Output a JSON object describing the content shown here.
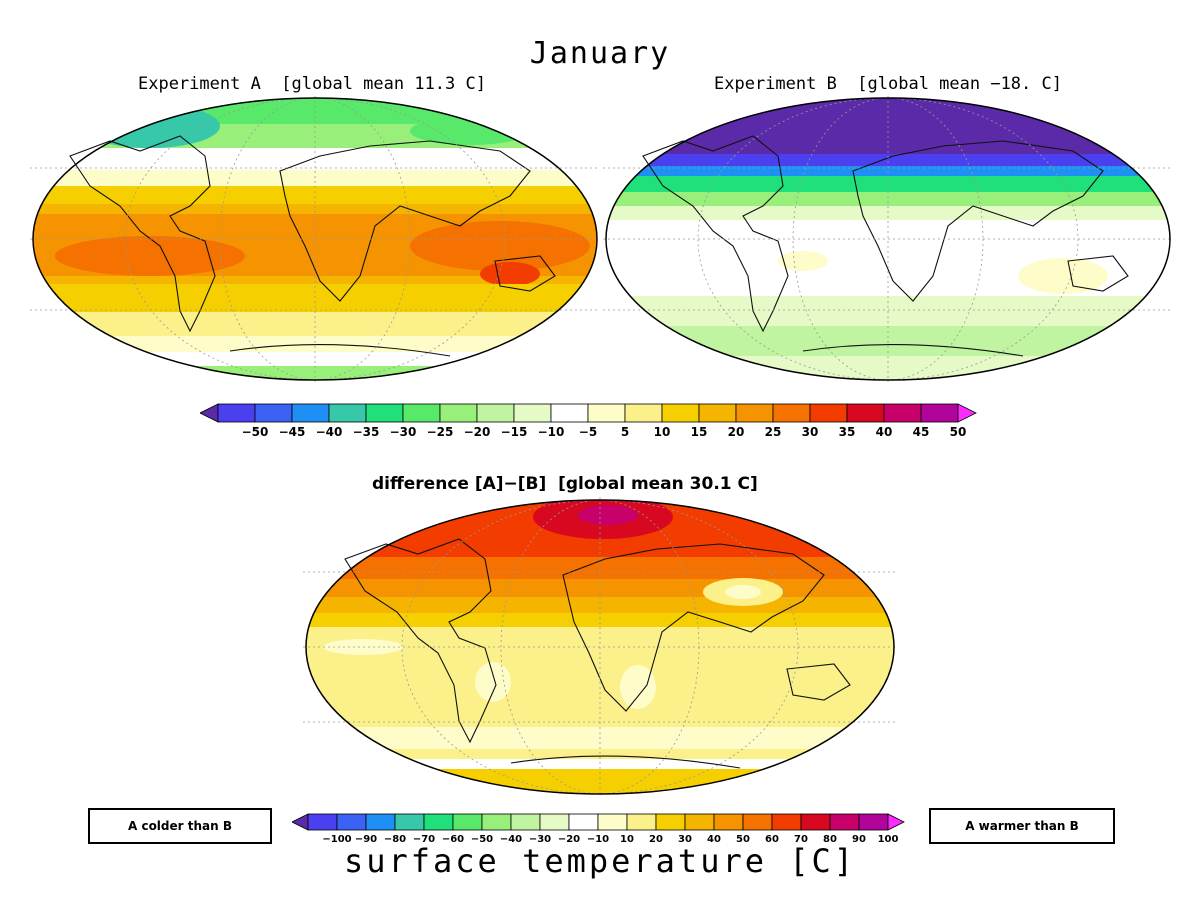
{
  "figure": {
    "title": "January",
    "bottom_title": "surface temperature [C]",
    "note_left": "A colder than B",
    "note_right": "A warmer than B"
  },
  "maps": {
    "a": {
      "title": "Experiment A  [global mean 11.3 C]"
    },
    "b": {
      "title": "Experiment B  [global mean −18. C]"
    },
    "diff": {
      "title": "difference [A]−[B]  [global mean 30.1 C]"
    }
  },
  "colorbar_top": {
    "colors": [
      "#5a2aa8",
      "#4b40f0",
      "#3c62f5",
      "#1e90f5",
      "#36c8a8",
      "#1fe07a",
      "#58e86a",
      "#98f07a",
      "#c0f4a0",
      "#e6fac8",
      "#ffffff",
      "#fefcc8",
      "#fbf08a",
      "#f5cf00",
      "#f5b400",
      "#f59400",
      "#f57100",
      "#f23c00",
      "#d80820",
      "#c8006a",
      "#b0049a",
      "#ff2aff"
    ],
    "labels": [
      "−50",
      "−45",
      "−40",
      "−35",
      "−30",
      "−25",
      "−20",
      "−15",
      "−10",
      "−5",
      "5",
      "10",
      "15",
      "20",
      "25",
      "30",
      "35",
      "40",
      "45",
      "50"
    ]
  },
  "colorbar_bottom": {
    "labels": [
      "−100",
      "−90",
      "−80",
      "−70",
      "−60",
      "−50",
      "−40",
      "−30",
      "−20",
      "−10",
      "10",
      "20",
      "30",
      "40",
      "50",
      "60",
      "70",
      "80",
      "90",
      "100"
    ]
  },
  "legend_colors": {
    "cold_extreme": "#5a2aa8",
    "warm_extreme": "#ff2aff",
    "neutral": "#ffffff"
  }
}
